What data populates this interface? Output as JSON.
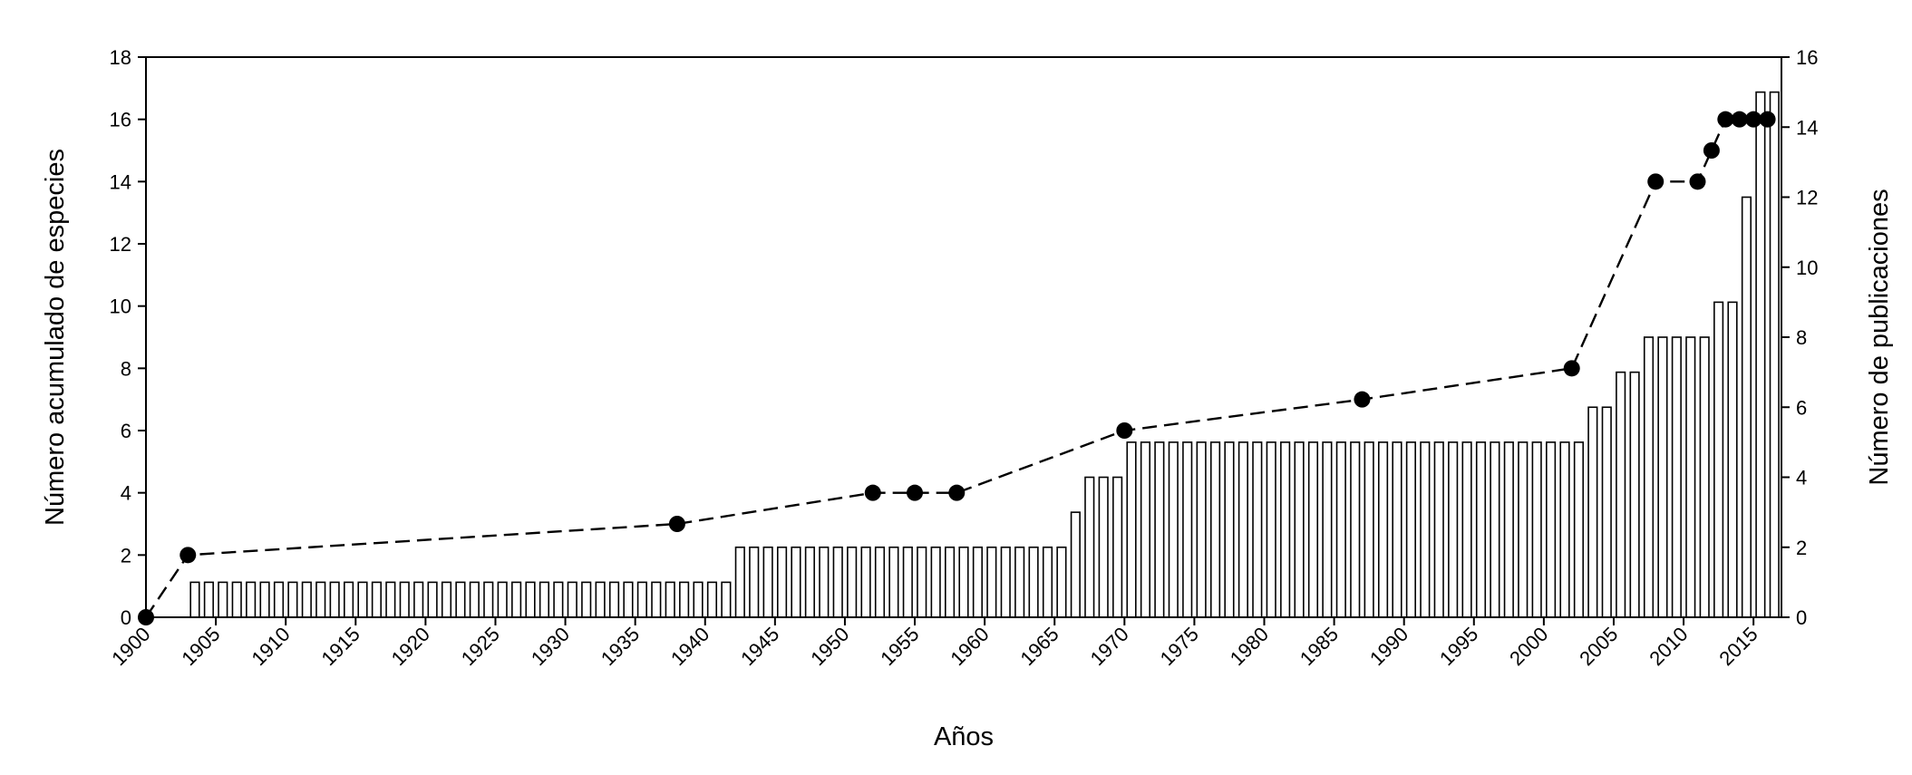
{
  "chart_data": {
    "type": "bar",
    "xlabel": "Años",
    "ylabel_left": "Número acumulado de especies",
    "ylabel_right": "Número de publicaciones",
    "xlim": [
      1900,
      2017
    ],
    "ylim_left": [
      0,
      18
    ],
    "ylim_right": [
      0,
      16
    ],
    "x_ticks": [
      1900,
      1905,
      1910,
      1915,
      1920,
      1925,
      1930,
      1935,
      1940,
      1945,
      1950,
      1955,
      1960,
      1965,
      1970,
      1975,
      1980,
      1985,
      1990,
      1995,
      2000,
      2005,
      2010,
      2015
    ],
    "y_ticks_left": [
      0,
      2,
      4,
      6,
      8,
      10,
      12,
      14,
      16,
      18
    ],
    "y_ticks_right": [
      0,
      2,
      4,
      6,
      8,
      10,
      12,
      14,
      16
    ],
    "grid": false,
    "series": [
      {
        "style": "bars",
        "axis": "right",
        "color": "#ffffff",
        "edge_color": "#000000",
        "segments": [
          {
            "from": 1903,
            "to": 1941,
            "value": 1
          },
          {
            "from": 1942,
            "to": 1965,
            "value": 2
          },
          {
            "from": 1966,
            "to": 1966,
            "value": 3
          },
          {
            "from": 1967,
            "to": 1969,
            "value": 4
          },
          {
            "from": 1970,
            "to": 2002,
            "value": 5
          },
          {
            "from": 2003,
            "to": 2004,
            "value": 6
          },
          {
            "from": 2005,
            "to": 2006,
            "value": 7
          },
          {
            "from": 2007,
            "to": 2011,
            "value": 8
          },
          {
            "from": 2012,
            "to": 2013,
            "value": 9
          },
          {
            "from": 2014,
            "to": 2014,
            "value": 12
          },
          {
            "from": 2015,
            "to": 2016,
            "value": 15
          }
        ]
      },
      {
        "style": "dashed-line-markers",
        "axis": "left",
        "color": "#000000",
        "x": [
          1900,
          1903,
          1938,
          1952,
          1955,
          1958,
          1970,
          1987,
          2002,
          2008,
          2011,
          2012,
          2013,
          2014,
          2015,
          2016
        ],
        "y": [
          0,
          2,
          3,
          4,
          4,
          4,
          6,
          7,
          8,
          14,
          14,
          15,
          16,
          16,
          16,
          16
        ]
      }
    ]
  }
}
